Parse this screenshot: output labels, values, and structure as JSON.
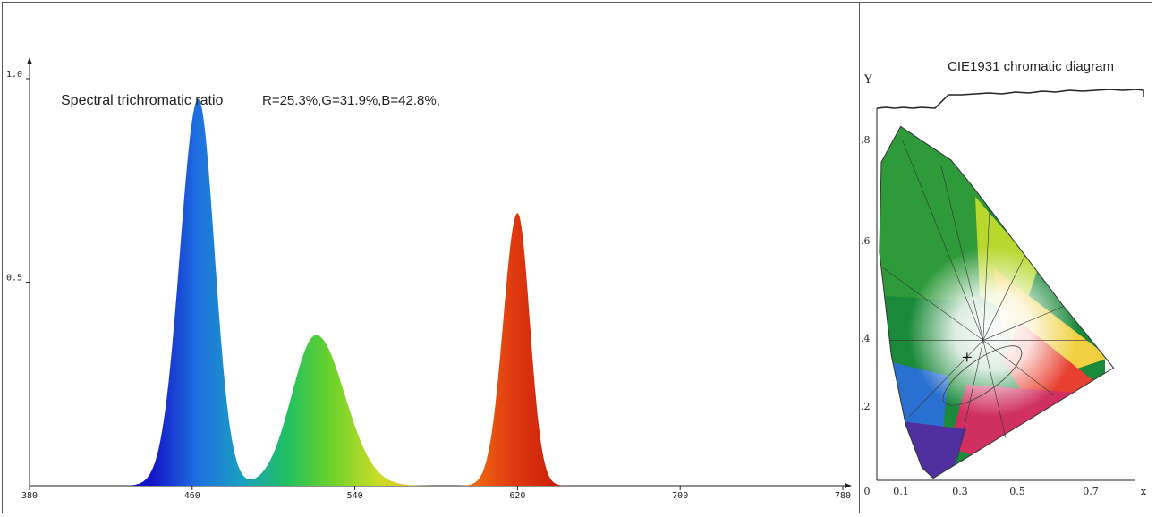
{
  "chart_data": [
    {
      "type": "area",
      "title": "Spectral trichromatic ratio",
      "annotation": "R=25.3%,G=31.9%,B=42.8%,",
      "xlabel": "",
      "ylabel": "",
      "xlim": [
        380,
        780
      ],
      "ylim": [
        0,
        1.0
      ],
      "x_ticks": [
        380,
        460,
        540,
        620,
        700,
        780
      ],
      "x_tick_labels": [
        "380",
        "460",
        "540",
        "620",
        "700",
        "780"
      ],
      "y_ticks": [
        0.5,
        1.0
      ],
      "y_tick_labels": [
        "0.5",
        "1.0"
      ],
      "peaks": [
        {
          "center": 463,
          "height": 0.95,
          "width_left": 9,
          "width_right": 8
        },
        {
          "center": 521,
          "height": 0.37,
          "width_left": 12,
          "width_right": 14
        },
        {
          "center": 620,
          "height": 0.67,
          "width_left": 7,
          "width_right": 6
        }
      ],
      "fill_colors": [
        "#1414c8",
        "#1e6ee0",
        "#1aa0c0",
        "#20c060",
        "#6ed22a",
        "#c8dc28",
        "#f0b020",
        "#f07010",
        "#e03a10",
        "#c81e0a"
      ],
      "grid": false,
      "legend": "none"
    },
    {
      "type": "scatter",
      "title": "CIE1931 chromatic diagram",
      "xlabel": "x",
      "ylabel": "Y",
      "xlim": [
        0,
        0.8
      ],
      "ylim": [
        0,
        0.9
      ],
      "x_tick_labels": [
        "0",
        "0.1",
        "0.3",
        "0.5",
        "0.7",
        "x"
      ],
      "y_tick_labels": [
        ".8",
        ".6",
        ".4",
        ".2"
      ],
      "locus": [
        [
          0.175,
          0.005
        ],
        [
          0.14,
          0.03
        ],
        [
          0.09,
          0.13
        ],
        [
          0.045,
          0.295
        ],
        [
          0.008,
          0.538
        ],
        [
          0.014,
          0.75
        ],
        [
          0.074,
          0.834
        ],
        [
          0.14,
          0.8
        ],
        [
          0.23,
          0.755
        ],
        [
          0.3,
          0.69
        ],
        [
          0.37,
          0.62
        ],
        [
          0.44,
          0.55
        ],
        [
          0.51,
          0.48
        ],
        [
          0.58,
          0.41
        ],
        [
          0.65,
          0.345
        ],
        [
          0.735,
          0.265
        ]
      ],
      "white_point": [
        0.28,
        0.29
      ],
      "grid": false
    }
  ]
}
